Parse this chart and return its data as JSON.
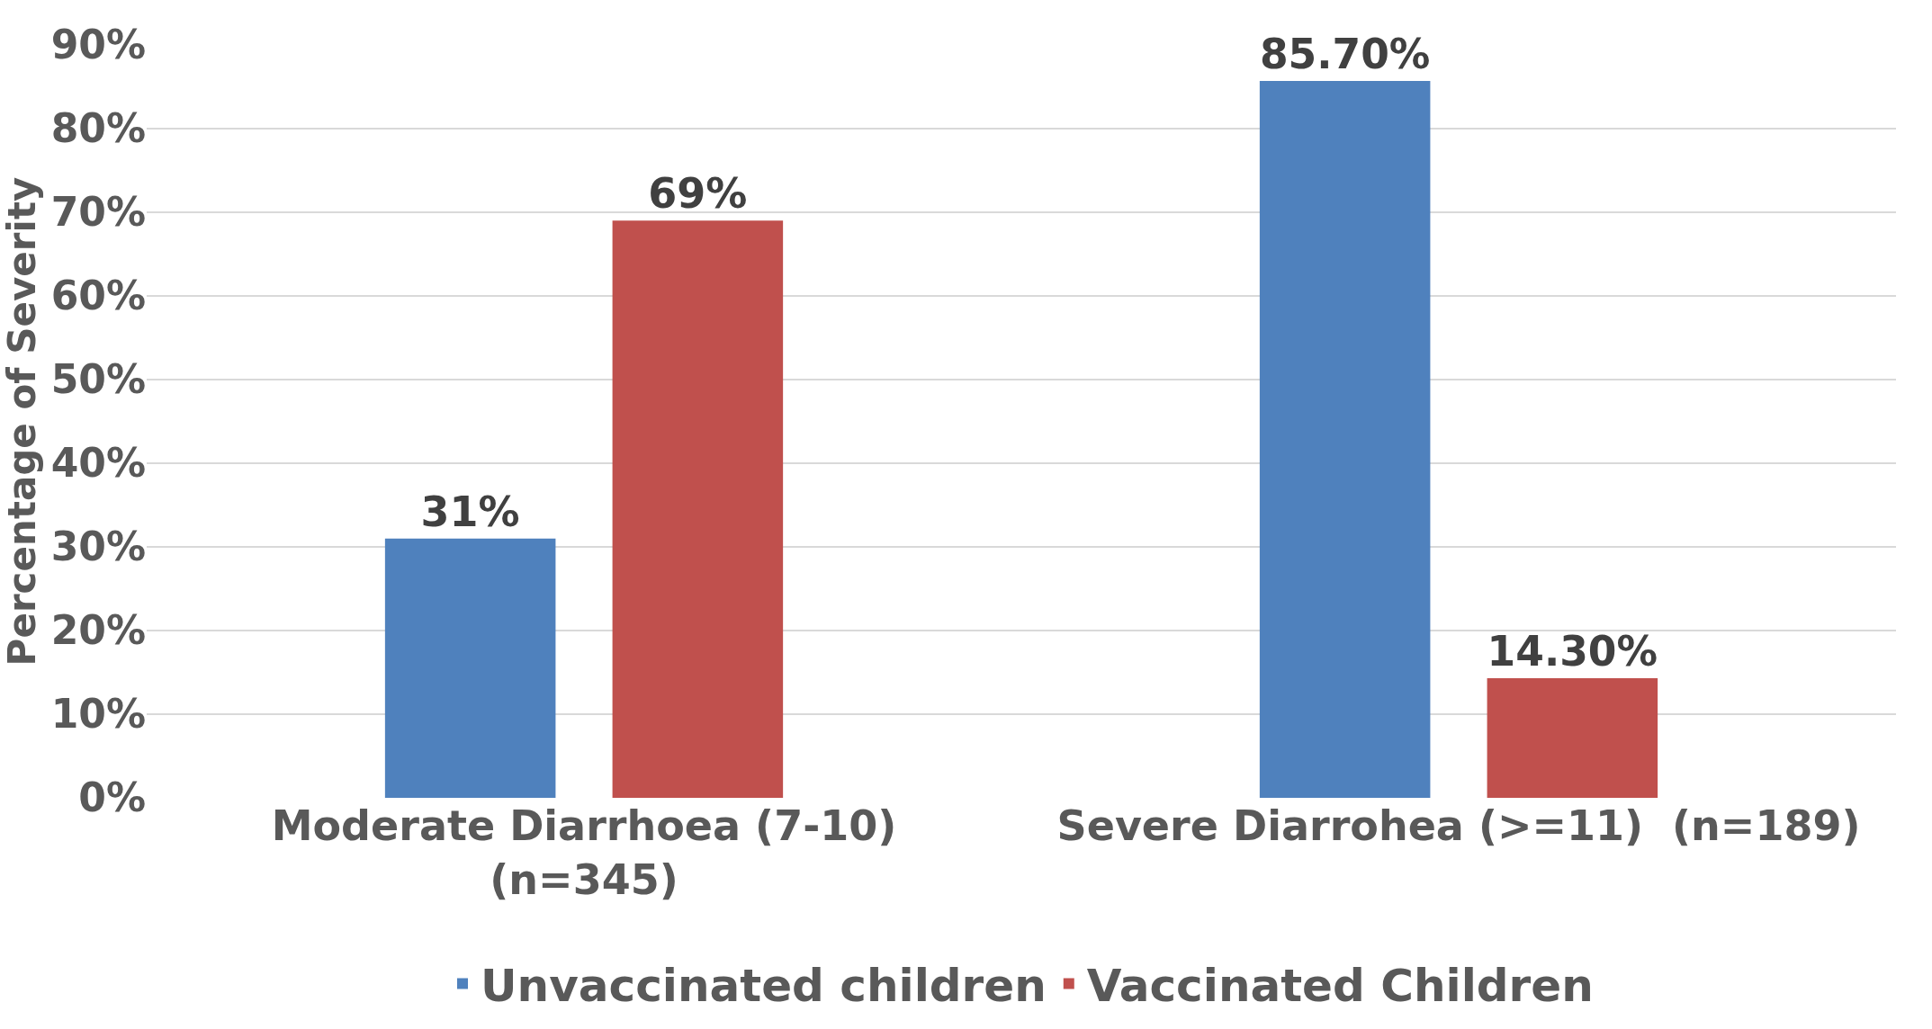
{
  "chart_data": {
    "type": "bar",
    "ylabel": "Percentage of Severity",
    "categories": [
      "Moderate Diarrhoea (7-10)\n(n=345)",
      "Severe Diarrohea (>=11)  (n=189)"
    ],
    "series": [
      {
        "name": "Unvaccinated children",
        "color": "#4f81bd",
        "values": [
          31,
          85.7
        ],
        "value_labels": [
          "31%",
          "85.70%"
        ]
      },
      {
        "name": "Vaccinated Children",
        "color": "#c0504d",
        "values": [
          69,
          14.3
        ],
        "value_labels": [
          "69%",
          "14.30%"
        ]
      }
    ],
    "ylim": [
      0,
      90
    ],
    "yticks": [
      {
        "value": 0,
        "label": "0%"
      },
      {
        "value": 10,
        "label": "10%"
      },
      {
        "value": 20,
        "label": "20%"
      },
      {
        "value": 30,
        "label": "30%"
      },
      {
        "value": 40,
        "label": "40%"
      },
      {
        "value": 50,
        "label": "50%"
      },
      {
        "value": 60,
        "label": "60%"
      },
      {
        "value": 70,
        "label": "70%"
      },
      {
        "value": 80,
        "label": "80%"
      },
      {
        "value": 90,
        "label": "90%"
      }
    ],
    "grid": "y",
    "legend": "bottom"
  }
}
